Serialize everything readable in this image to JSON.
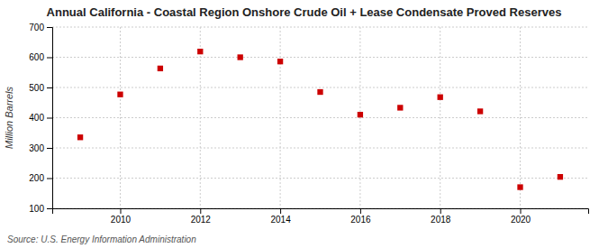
{
  "chart_data": {
    "type": "scatter",
    "title": "Annual California - Coastal Region Onshore Crude Oil + Lease Condensate Proved Reserves",
    "ylabel": "Million Barrels",
    "source": "Source: U.S. Energy Information Administration",
    "x": [
      2009,
      2010,
      2011,
      2012,
      2013,
      2014,
      2015,
      2016,
      2017,
      2018,
      2019,
      2020,
      2021
    ],
    "values": [
      335,
      477,
      563,
      619,
      600,
      586,
      485,
      410,
      433,
      468,
      421,
      170,
      204
    ],
    "xlim": [
      2008.3,
      2021.7
    ],
    "xticks": [
      2010,
      2012,
      2014,
      2016,
      2018,
      2020
    ],
    "ylim": [
      100,
      700
    ],
    "yticks": [
      100,
      200,
      300,
      400,
      500,
      600,
      700
    ],
    "grid": true,
    "color": "#cc0000",
    "marker": "square"
  }
}
